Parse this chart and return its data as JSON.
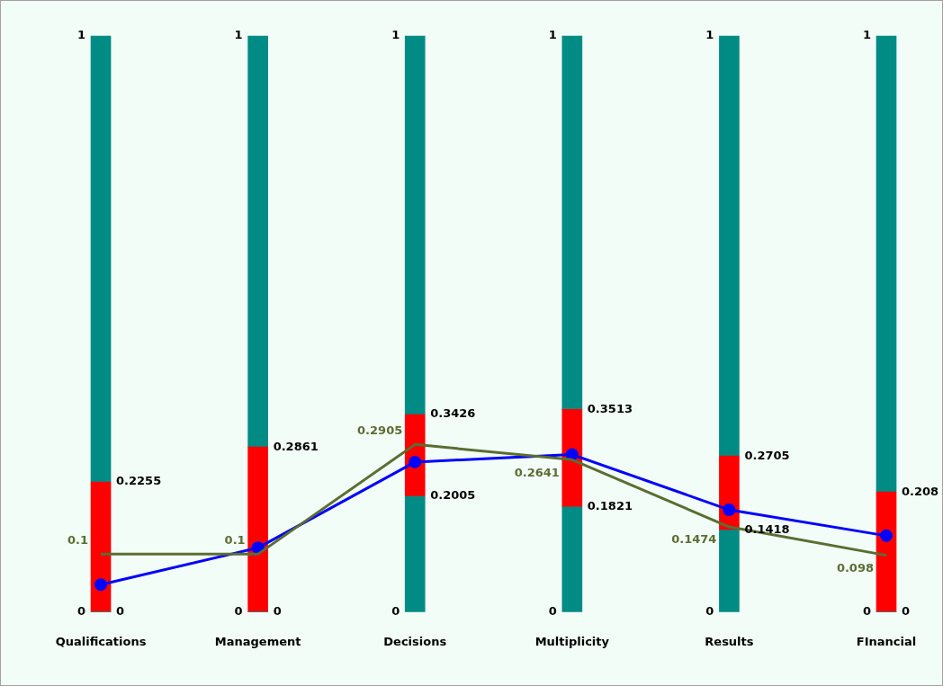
{
  "chart_data": {
    "type": "bar",
    "categories": [
      "Qualifications",
      "Management",
      "Decisions",
      "Multiplicity",
      "Results",
      "FInancial"
    ],
    "ylim": [
      0,
      1
    ],
    "yticks": [
      0,
      1
    ],
    "grid": false,
    "legend": false,
    "stacked": true,
    "series": [
      {
        "color": "#008b85",
        "values": [
          0,
          0,
          0.2005,
          0.1821,
          0.1418,
          0
        ]
      },
      {
        "color": "#ff0000",
        "values": [
          0.2255,
          0.2861,
          0.1421,
          0.1692,
          0.1287,
          0.208
        ]
      },
      {
        "color": "#008b85",
        "values": [
          0.7745,
          0.7139,
          0.6574,
          0.6487,
          0.7295,
          0.792
        ]
      },
      {
        "type": "line",
        "color": "#0000ff",
        "marker": "circle",
        "values": [
          0.047,
          0.111,
          0.26,
          0.273,
          0.177,
          0.132
        ]
      },
      {
        "type": "line",
        "color": "#5a6e32",
        "marker": "none",
        "values": [
          0.1,
          0.1,
          0.2905,
          0.2641,
          0.1474,
          0.098
        ],
        "value_labels": [
          "0.1",
          "0.1",
          "0.2905",
          "0.2641",
          "0.1474",
          "0.098"
        ]
      }
    ],
    "annotations": [
      {
        "text": "1",
        "x": "Management",
        "y": 1
      },
      {
        "text": "0",
        "x": "Management",
        "y": 0
      },
      {
        "text": "1",
        "x": "Decisions",
        "y": 1
      },
      {
        "text": "0",
        "x": "Decisions",
        "y": 0
      },
      {
        "text": "1",
        "x": "Multiplicity",
        "y": 1
      },
      {
        "text": "0",
        "x": "Multiplicity",
        "y": 0
      },
      {
        "text": "1",
        "x": "Results",
        "y": 1
      },
      {
        "text": "0",
        "x": "Results",
        "y": 0
      },
      {
        "text": "1",
        "x": "FInancial",
        "y": 1
      },
      {
        "text": "0",
        "x": "FInancial",
        "y": 0
      },
      {
        "text": "0",
        "x": "Qualifications",
        "y": 0
      },
      {
        "text": "0.2255",
        "x": "Qualifications",
        "y": 0.2255
      },
      {
        "text": "0",
        "x": "Management",
        "y": 0
      },
      {
        "text": "0.2861",
        "x": "Management",
        "y": 0.2861
      },
      {
        "text": "0.2005",
        "x": "Decisions",
        "y": 0.2005
      },
      {
        "text": "0.3426",
        "x": "Decisions",
        "y": 0.3426
      },
      {
        "text": "0.1821",
        "x": "Multiplicity",
        "y": 0.1821
      },
      {
        "text": "0.3513",
        "x": "Multiplicity",
        "y": 0.3513
      },
      {
        "text": "0.1418",
        "x": "Results",
        "y": 0.1418
      },
      {
        "text": "0.2705",
        "x": "Results",
        "y": 0.2705
      },
      {
        "text": "0",
        "x": "FInancial",
        "y": 0
      },
      {
        "text": "0.208",
        "x": "FInancial",
        "y": 0.208
      }
    ]
  }
}
